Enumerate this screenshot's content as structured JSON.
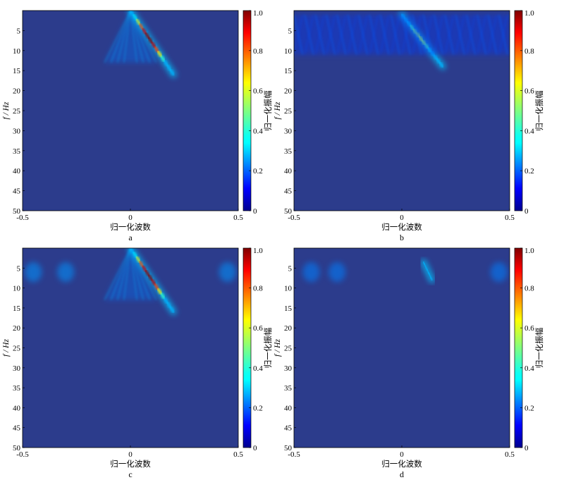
{
  "charts": [
    {
      "id": "a",
      "panel_label": "a",
      "xlabel": "归一化波数",
      "ylabel": "f / Hz",
      "colorbar_label": "归一化振幅",
      "x_ticks": [
        "-0.5",
        "0",
        "0.5"
      ],
      "y_ticks": [
        "5",
        "10",
        "15",
        "20",
        "25",
        "30",
        "35",
        "40",
        "45",
        "50"
      ],
      "cbar_ticks": [
        "0",
        "0.2",
        "0.4",
        "0.6",
        "0.8",
        "1.0"
      ]
    },
    {
      "id": "b",
      "panel_label": "b",
      "xlabel": "归一化波数",
      "ylabel": "f / Hz",
      "colorbar_label": "归一化振幅",
      "x_ticks": [
        "-0.5",
        "0",
        "0.5"
      ],
      "y_ticks": [
        "5",
        "10",
        "15",
        "20",
        "25",
        "30",
        "35",
        "40",
        "45",
        "50"
      ],
      "cbar_ticks": [
        "0",
        "0.2",
        "0.4",
        "0.6",
        "0.8",
        "1.0"
      ]
    },
    {
      "id": "c",
      "panel_label": "c",
      "xlabel": "归一化波数",
      "ylabel": "f / Hz",
      "colorbar_label": "归一化振幅",
      "x_ticks": [
        "-0.5",
        "0",
        "0.5"
      ],
      "y_ticks": [
        "5",
        "10",
        "15",
        "20",
        "25",
        "30",
        "35",
        "40",
        "45",
        "50"
      ],
      "cbar_ticks": [
        "0",
        "0.2",
        "0.4",
        "0.6",
        "0.8",
        "1.0"
      ]
    },
    {
      "id": "d",
      "panel_label": "d",
      "xlabel": "归一化波数",
      "ylabel": "f / Hz",
      "colorbar_label": "归一化振幅",
      "x_ticks": [
        "-0.5",
        "0",
        "0.5"
      ],
      "y_ticks": [
        "5",
        "10",
        "15",
        "20",
        "25",
        "30",
        "35",
        "40",
        "45",
        "50"
      ],
      "cbar_ticks": [
        "0",
        "0.2",
        "0.4",
        "0.6",
        "0.8",
        "1.0"
      ]
    }
  ],
  "chart_data": [
    {
      "panel": "a",
      "type": "heatmap",
      "colormap": "jet",
      "xlabel": "归一化波数",
      "ylabel": "f / Hz",
      "colorbar_label": "归一化振幅",
      "xlim": [
        -0.5,
        0.5
      ],
      "ylim": [
        0,
        50
      ],
      "clim": [
        0,
        1.0
      ],
      "features": [
        {
          "kind": "ridge",
          "k0": 0,
          "f0": 0,
          "k1": 0.2,
          "f1": 16,
          "peak": 1.0
        },
        {
          "kind": "fan",
          "apex_k": 0,
          "apex_f": 0,
          "left_k": -0.12,
          "right_k": 0.12,
          "f_end": 13,
          "peak": 0.3
        }
      ]
    },
    {
      "panel": "b",
      "type": "heatmap",
      "colormap": "jet",
      "xlabel": "归一化波数",
      "ylabel": "f / Hz",
      "colorbar_label": "归一化振幅",
      "xlim": [
        -0.5,
        0.5
      ],
      "ylim": [
        0,
        50
      ],
      "clim": [
        0,
        1.0
      ],
      "features": [
        {
          "kind": "ridge",
          "k0": 0,
          "f0": 1,
          "k1": 0.19,
          "f1": 14,
          "peak": 0.55
        },
        {
          "kind": "band",
          "f_start": 1,
          "f_end": 11,
          "peak": 0.22
        }
      ]
    },
    {
      "panel": "c",
      "type": "heatmap",
      "colormap": "jet",
      "xlabel": "归一化波数",
      "ylabel": "f / Hz",
      "colorbar_label": "归一化振幅",
      "xlim": [
        -0.5,
        0.5
      ],
      "ylim": [
        0,
        50
      ],
      "clim": [
        0,
        1.0
      ],
      "features": [
        {
          "kind": "ridge",
          "k0": 0,
          "f0": 0,
          "k1": 0.2,
          "f1": 16,
          "peak": 1.0
        },
        {
          "kind": "fan",
          "apex_k": 0,
          "apex_f": 0,
          "left_k": -0.12,
          "right_k": 0.12,
          "f_end": 13,
          "peak": 0.3
        },
        {
          "kind": "blob",
          "k": -0.45,
          "f": 6,
          "peak": 0.12
        },
        {
          "kind": "blob",
          "k": -0.3,
          "f": 6,
          "peak": 0.12
        },
        {
          "kind": "blob",
          "k": 0.45,
          "f": 6,
          "peak": 0.12
        }
      ]
    },
    {
      "panel": "d",
      "type": "heatmap",
      "colormap": "jet",
      "xlabel": "归一化波数",
      "ylabel": "f / Hz",
      "colorbar_label": "归一化振幅",
      "xlim": [
        -0.5,
        0.5
      ],
      "ylim": [
        0,
        50
      ],
      "clim": [
        0,
        1.0
      ],
      "features": [
        {
          "kind": "ridge",
          "k0": 0.1,
          "f0": 3.5,
          "k1": 0.14,
          "f1": 8,
          "peak": 0.28
        },
        {
          "kind": "blob",
          "k": -0.42,
          "f": 6,
          "peak": 0.1
        },
        {
          "kind": "blob",
          "k": -0.3,
          "f": 6,
          "peak": 0.1
        },
        {
          "kind": "blob",
          "k": 0.45,
          "f": 6,
          "peak": 0.1
        }
      ]
    }
  ]
}
